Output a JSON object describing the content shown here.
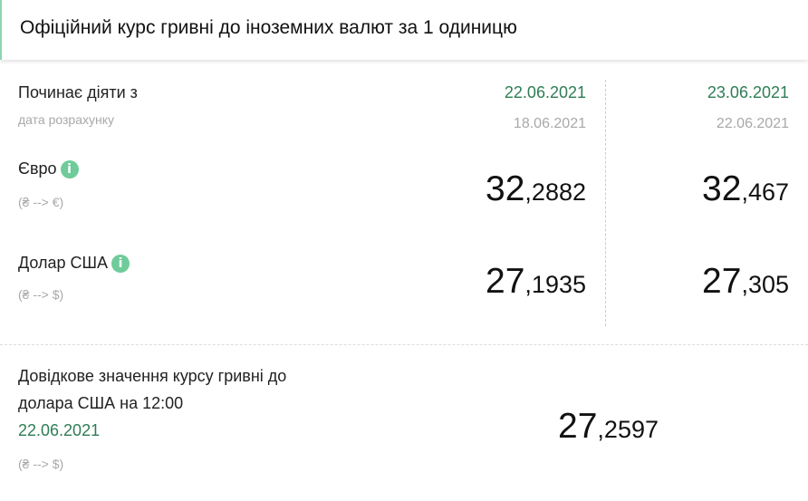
{
  "header": {
    "title": "Офіційний курс гривні до іноземних валют за 1 одиницю"
  },
  "dates": {
    "label": "Починає діяти з",
    "sub_label": "дата розрахунку",
    "columns": [
      {
        "effective": "22.06.2021",
        "calculated": "18.06.2021"
      },
      {
        "effective": "23.06.2021",
        "calculated": "22.06.2021"
      }
    ]
  },
  "currencies": [
    {
      "name": "Євро",
      "direction": "(₴ --> €)",
      "icon": "info-icon",
      "rates": [
        {
          "int": "32",
          "frac": ",2882"
        },
        {
          "int": "32",
          "frac": ",467"
        }
      ]
    },
    {
      "name": "Долар США",
      "direction": "(₴ --> $)",
      "icon": "info-icon",
      "rates": [
        {
          "int": "27",
          "frac": ",1935"
        },
        {
          "int": "27",
          "frac": ",305"
        }
      ]
    }
  ],
  "reference": {
    "line1": "Довідкове значення курсу гривні до",
    "line2": "долара США на 12:00",
    "date": "22.06.2021",
    "direction": "(₴ --> $)",
    "rate": {
      "int": "27",
      "frac": ",2597"
    }
  },
  "colors": {
    "accent": "#2e7d55",
    "info": "#6fcb9a",
    "border": "#8fd4b0"
  }
}
